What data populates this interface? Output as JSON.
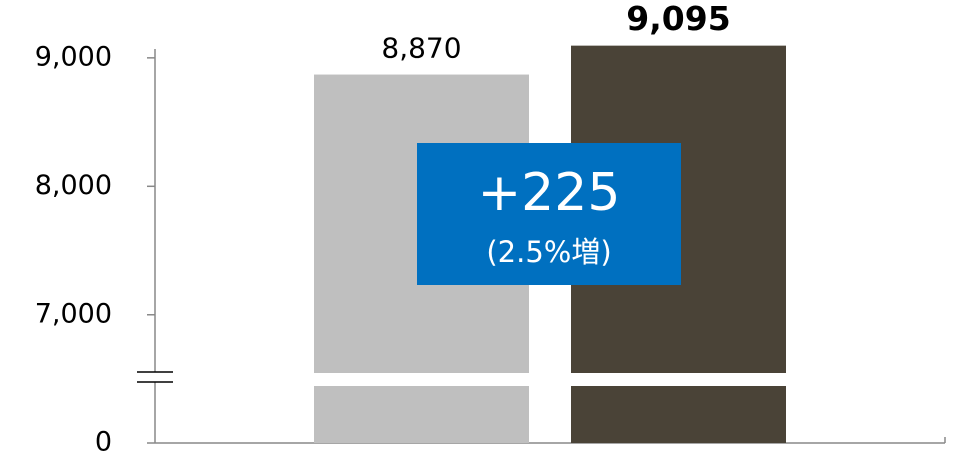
{
  "chart_data": {
    "type": "bar",
    "categories": [
      null,
      null
    ],
    "values": [
      8870,
      9095
    ],
    "value_labels": [
      "8,870",
      "9,095"
    ],
    "colors": [
      "#bfbfbf",
      "#4a4337"
    ],
    "label_bold": [
      false,
      true
    ],
    "ylim": [
      0,
      9100
    ],
    "axis_break": 6500,
    "yticks": [
      {
        "value": 0,
        "label": "0"
      },
      {
        "value": 7000,
        "label": "7,000"
      },
      {
        "value": 8000,
        "label": "8,000"
      },
      {
        "value": 9000,
        "label": "9,000"
      }
    ],
    "annotation": {
      "text": "+225",
      "subtext": "(2.5%増)",
      "color": "#0070c0"
    }
  }
}
